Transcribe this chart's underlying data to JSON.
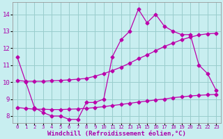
{
  "xlabel": "Windchill (Refroidissement éolien,°C)",
  "bg_color": "#c8eef0",
  "line_color": "#bb00aa",
  "grid_color": "#99cccc",
  "yticks": [
    8,
    9,
    10,
    11,
    12,
    13,
    14
  ],
  "xticks": [
    0,
    1,
    2,
    3,
    4,
    5,
    6,
    7,
    8,
    9,
    10,
    11,
    12,
    13,
    14,
    15,
    16,
    17,
    18,
    19,
    20,
    21,
    22,
    23
  ],
  "line1_y": [
    11.5,
    10.0,
    8.5,
    8.2,
    8.0,
    8.0,
    7.8,
    7.8,
    8.8,
    8.8,
    9.0,
    11.5,
    12.5,
    13.0,
    14.3,
    13.5,
    14.0,
    13.3,
    13.0,
    12.8,
    12.8,
    11.0,
    10.5,
    9.5
  ],
  "line2_y": [
    10.1,
    10.05,
    10.05,
    10.05,
    10.08,
    10.1,
    10.13,
    10.17,
    10.22,
    10.35,
    10.5,
    10.68,
    10.88,
    11.12,
    11.38,
    11.6,
    11.85,
    12.1,
    12.3,
    12.5,
    12.65,
    12.78,
    12.85,
    12.88
  ],
  "line3_y": [
    8.5,
    8.45,
    8.4,
    8.4,
    8.38,
    8.38,
    8.4,
    8.42,
    8.45,
    8.5,
    8.55,
    8.62,
    8.68,
    8.75,
    8.82,
    8.88,
    8.95,
    9.0,
    9.08,
    9.13,
    9.18,
    9.22,
    9.25,
    9.28
  ]
}
